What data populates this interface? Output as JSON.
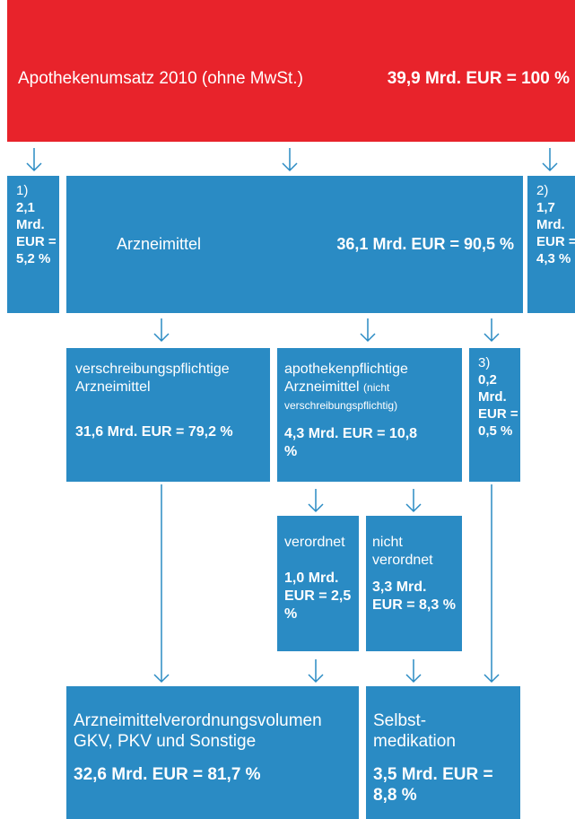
{
  "top": {
    "label": "Apothekenumsatz 2010 (ohne MwSt.)",
    "value": "39,9 Mrd. EUR = 100 %"
  },
  "nodes": [
    {
      "note": "1)",
      "value": "2,1 Mrd. EUR = 5,2 %"
    },
    {
      "label": "Arzneimittel",
      "value": "36,1 Mrd. EUR = 90,5 %"
    },
    {
      "note": "2)",
      "value": "1,7 Mrd. EUR = 4,3 %"
    },
    {
      "label": "verschreibungspflichtige Arzneimittel",
      "value": "31,6 Mrd. EUR = 79,2 %"
    },
    {
      "label": "apothekenpflichtige Arzneimittel",
      "label_note": "(nicht verschreibungspflichtig)",
      "value": "4,3 Mrd. EUR = 10,8 %"
    },
    {
      "note": "3)",
      "value": "0,2 Mrd. EUR = 0,5 %"
    },
    {
      "label": "verordnet",
      "value": "1,0 Mrd. EUR = 2,5 %"
    },
    {
      "label": "nicht verordnet",
      "value": "3,3 Mrd. EUR = 8,3 %"
    },
    {
      "label": "Arzneimittelverordnungsvolumen GKV, PKV und Sonstige",
      "value": "32,6 Mrd. EUR = 81,7 %"
    },
    {
      "label": "Selbst-medikation",
      "value": "3,5 Mrd. EUR = 8,8 %"
    }
  ]
}
